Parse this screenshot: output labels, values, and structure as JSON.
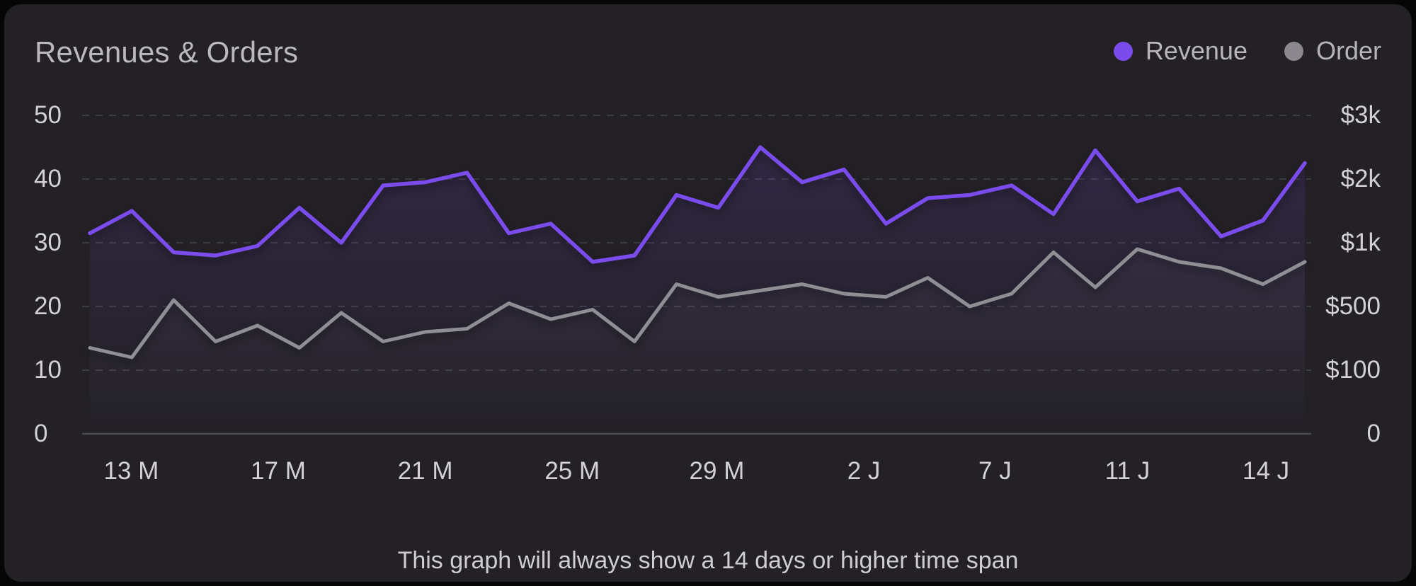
{
  "header": {
    "title": "Revenues & Orders"
  },
  "legend": {
    "items": [
      {
        "label": "Revenue",
        "color": "#7a4cec"
      },
      {
        "label": "Order",
        "color": "#8b898f"
      }
    ]
  },
  "footer": {
    "note": "This graph will always show a 14 days or higher time span"
  },
  "chart_data": {
    "type": "line",
    "title": "Revenues & Orders",
    "legend_position": "top-right",
    "grid": {
      "style": "horizontal-dashed",
      "color": "#3e3c43",
      "baseline_color": "#4c4a52"
    },
    "points_per_series": 30,
    "x_ticks": [
      {
        "label": "13 M",
        "pos": 0.034
      },
      {
        "label": "17 M",
        "pos": 0.155
      },
      {
        "label": "21 M",
        "pos": 0.276
      },
      {
        "label": "25 M",
        "pos": 0.397
      },
      {
        "label": "29 M",
        "pos": 0.516
      },
      {
        "label": "2 J",
        "pos": 0.637
      },
      {
        "label": "7 J",
        "pos": 0.745
      },
      {
        "label": "11 J",
        "pos": 0.854
      },
      {
        "label": "14 J",
        "pos": 0.968
      }
    ],
    "y_axis_left": {
      "range": [
        0,
        50
      ],
      "ticks": [
        {
          "label": "50",
          "value": 50
        },
        {
          "label": "40",
          "value": 40
        },
        {
          "label": "30",
          "value": 30
        },
        {
          "label": "20",
          "value": 20
        },
        {
          "label": "10",
          "value": 10
        },
        {
          "label": "0",
          "value": 0
        }
      ]
    },
    "y_axis_right": {
      "ticks": [
        {
          "label": "$3k",
          "value": 50
        },
        {
          "label": "$2k",
          "value": 40
        },
        {
          "label": "$1k",
          "value": 30
        },
        {
          "label": "$500",
          "value": 20
        },
        {
          "label": "$100",
          "value": 10
        },
        {
          "label": "0",
          "value": 0
        }
      ]
    },
    "series": [
      {
        "name": "Order",
        "color": "#908e95",
        "stroke_width": 5,
        "fill_from": "rgba(208,206,213,0.09)",
        "fill_to": "rgba(208,206,213,0)",
        "values": [
          13.5,
          12,
          21,
          14.5,
          17,
          13.5,
          19,
          14.5,
          16,
          16.5,
          20.5,
          18,
          19.5,
          14.5,
          23.5,
          21.5,
          22.5,
          23.5,
          22,
          21.5,
          24.5,
          20,
          22,
          28.5,
          23,
          29,
          27,
          26,
          23.5,
          27
        ]
      },
      {
        "name": "Revenue",
        "color": "#7a4cec",
        "stroke_width": 5.5,
        "fill_from": "rgba(124,78,236,0.16)",
        "fill_to": "rgba(124,78,236,0)",
        "values": [
          31.5,
          35,
          28.5,
          28,
          29.5,
          35.5,
          30,
          39,
          39.5,
          41,
          31.5,
          33,
          27,
          28,
          37.5,
          35.5,
          45,
          39.5,
          41.5,
          33,
          37,
          37.5,
          39,
          34.5,
          44.5,
          36.5,
          38.5,
          31,
          33.5,
          42.5
        ]
      }
    ]
  }
}
